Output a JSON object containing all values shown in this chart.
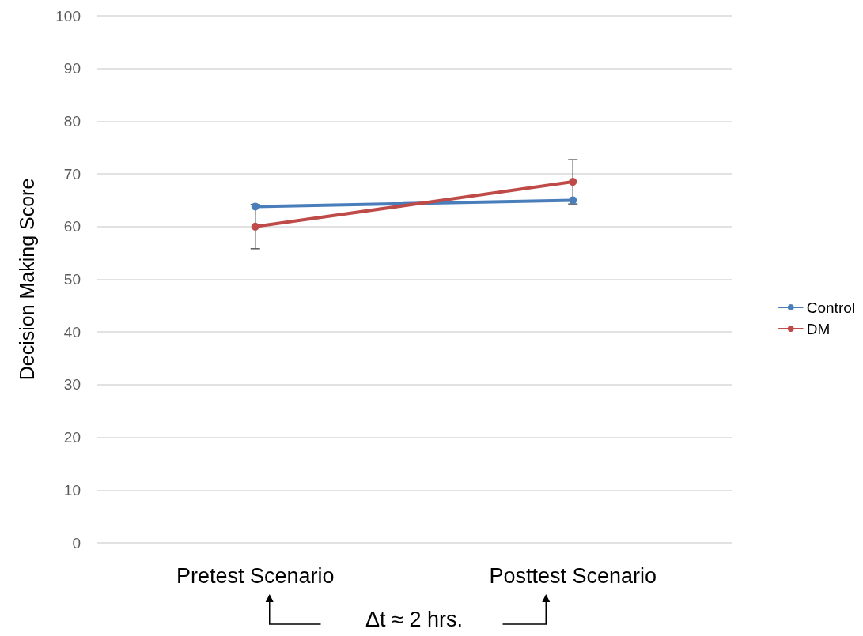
{
  "chart_data": {
    "type": "line",
    "ylabel": "Decision Making Score",
    "categories": [
      "Pretest Scenario",
      "Posttest Scenario"
    ],
    "series": [
      {
        "name": "Control",
        "color": "#4a7ebb",
        "values": [
          63.8,
          65
        ]
      },
      {
        "name": "DM",
        "color": "#be4b48",
        "values": [
          60,
          68.5
        ],
        "errors": [
          4.2,
          4.2
        ]
      }
    ],
    "ylim": [
      0,
      100
    ],
    "yticks": [
      0,
      10,
      20,
      30,
      40,
      50,
      60,
      70,
      80,
      90,
      100
    ],
    "grid": "y",
    "legend": "right",
    "marker": "circle",
    "line_style": "solid",
    "annotations": [
      "Δt ≈ 2 hrs."
    ]
  }
}
